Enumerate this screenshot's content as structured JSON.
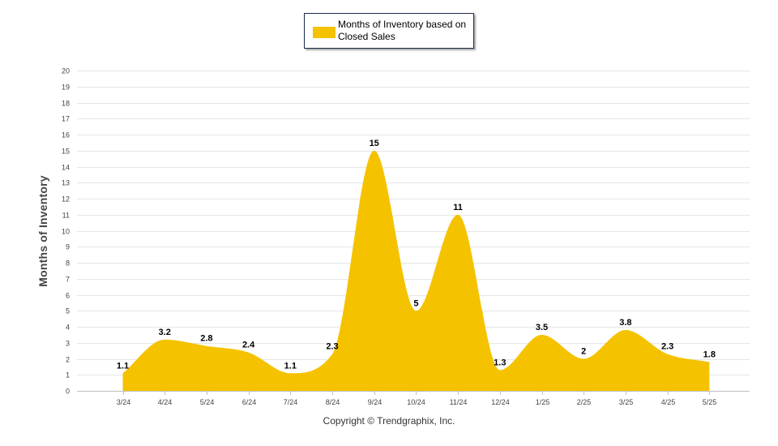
{
  "chart_data": {
    "type": "area",
    "categories": [
      "3/24",
      "4/24",
      "5/24",
      "6/24",
      "7/24",
      "8/24",
      "9/24",
      "10/24",
      "11/24",
      "12/24",
      "1/25",
      "2/25",
      "3/25",
      "4/25",
      "5/25"
    ],
    "series": [
      {
        "name": "Months of Inventory based on Closed Sales",
        "values": [
          1.1,
          3.2,
          2.8,
          2.4,
          1.1,
          2.3,
          15,
          5,
          11,
          1.3,
          3.5,
          2,
          3.8,
          2.3,
          1.8
        ],
        "color": "#f5c200"
      }
    ],
    "data_labels": [
      "1.1",
      "3.2",
      "2.8",
      "2.4",
      "1.1",
      "2.3",
      "15",
      "5",
      "11",
      "1.3",
      "3.5",
      "2",
      "3.8",
      "2.3",
      "1.8"
    ],
    "title": "",
    "xlabel": "",
    "ylabel": "Months of Inventory",
    "ylim": [
      0,
      20
    ],
    "yticks": [
      "0",
      "1",
      "2",
      "3",
      "4",
      "5",
      "6",
      "7",
      "8",
      "9",
      "10",
      "11",
      "12",
      "13",
      "14",
      "15",
      "16",
      "17",
      "18",
      "19",
      "20"
    ],
    "grid": true,
    "legend_position": "top-center"
  },
  "legend": {
    "label": "Months of Inventory based on Closed Sales"
  },
  "footer": {
    "copyright": "Copyright © Trendgraphix, Inc."
  }
}
